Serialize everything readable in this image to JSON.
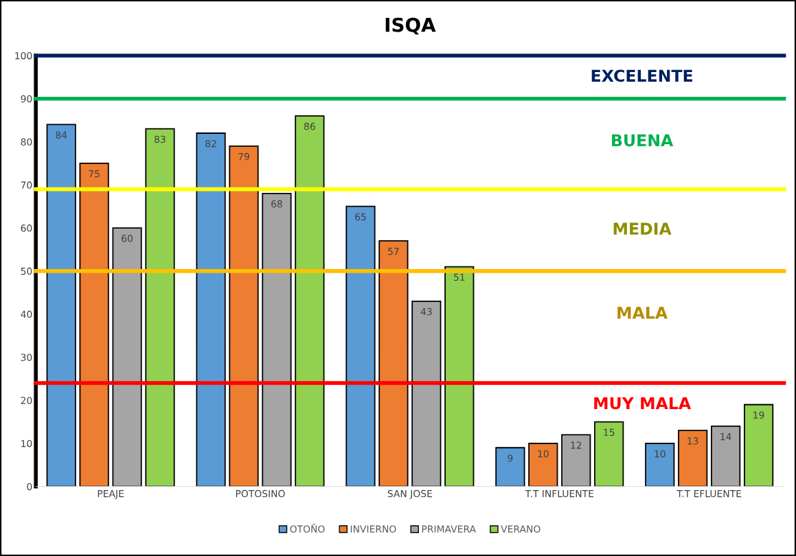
{
  "chart_data": {
    "type": "bar",
    "title": "ISQA",
    "categories": [
      "PEAJE",
      "POTOSINO",
      "SAN JOSE",
      "T.T INFLUENTE",
      "T.T EFLUENTE"
    ],
    "series": [
      {
        "name": "OTOÑO",
        "color": "#5b9bd5",
        "values": [
          84,
          82,
          65,
          9,
          10
        ]
      },
      {
        "name": "INVIERNO",
        "color": "#ed7d31",
        "values": [
          75,
          79,
          57,
          10,
          13
        ]
      },
      {
        "name": "PRIMAVERA",
        "color": "#a5a5a5",
        "values": [
          60,
          68,
          43,
          12,
          14
        ]
      },
      {
        "name": "VERANO",
        "color": "#92d050",
        "values": [
          83,
          86,
          51,
          15,
          19
        ]
      }
    ],
    "ylim": [
      0,
      100
    ],
    "yticks": [
      0,
      10,
      20,
      30,
      40,
      50,
      60,
      70,
      80,
      90,
      100
    ],
    "data_labels": true,
    "legend": "bottom",
    "grid": false,
    "ref_lines": [
      {
        "axis": "y",
        "value": 100,
        "color": "#002060",
        "label": "EXCELENTE"
      },
      {
        "axis": "y",
        "value": 90,
        "color": "#00b050",
        "label": "BUENA"
      },
      {
        "axis": "y",
        "value": 69,
        "color": "#ffff00",
        "label": "MEDIA"
      },
      {
        "axis": "y",
        "value": 50,
        "color": "#ffc000",
        "label": "MALA"
      },
      {
        "axis": "y",
        "value": 24,
        "color": "#ff0000",
        "label": "MUY MALA"
      }
    ]
  }
}
